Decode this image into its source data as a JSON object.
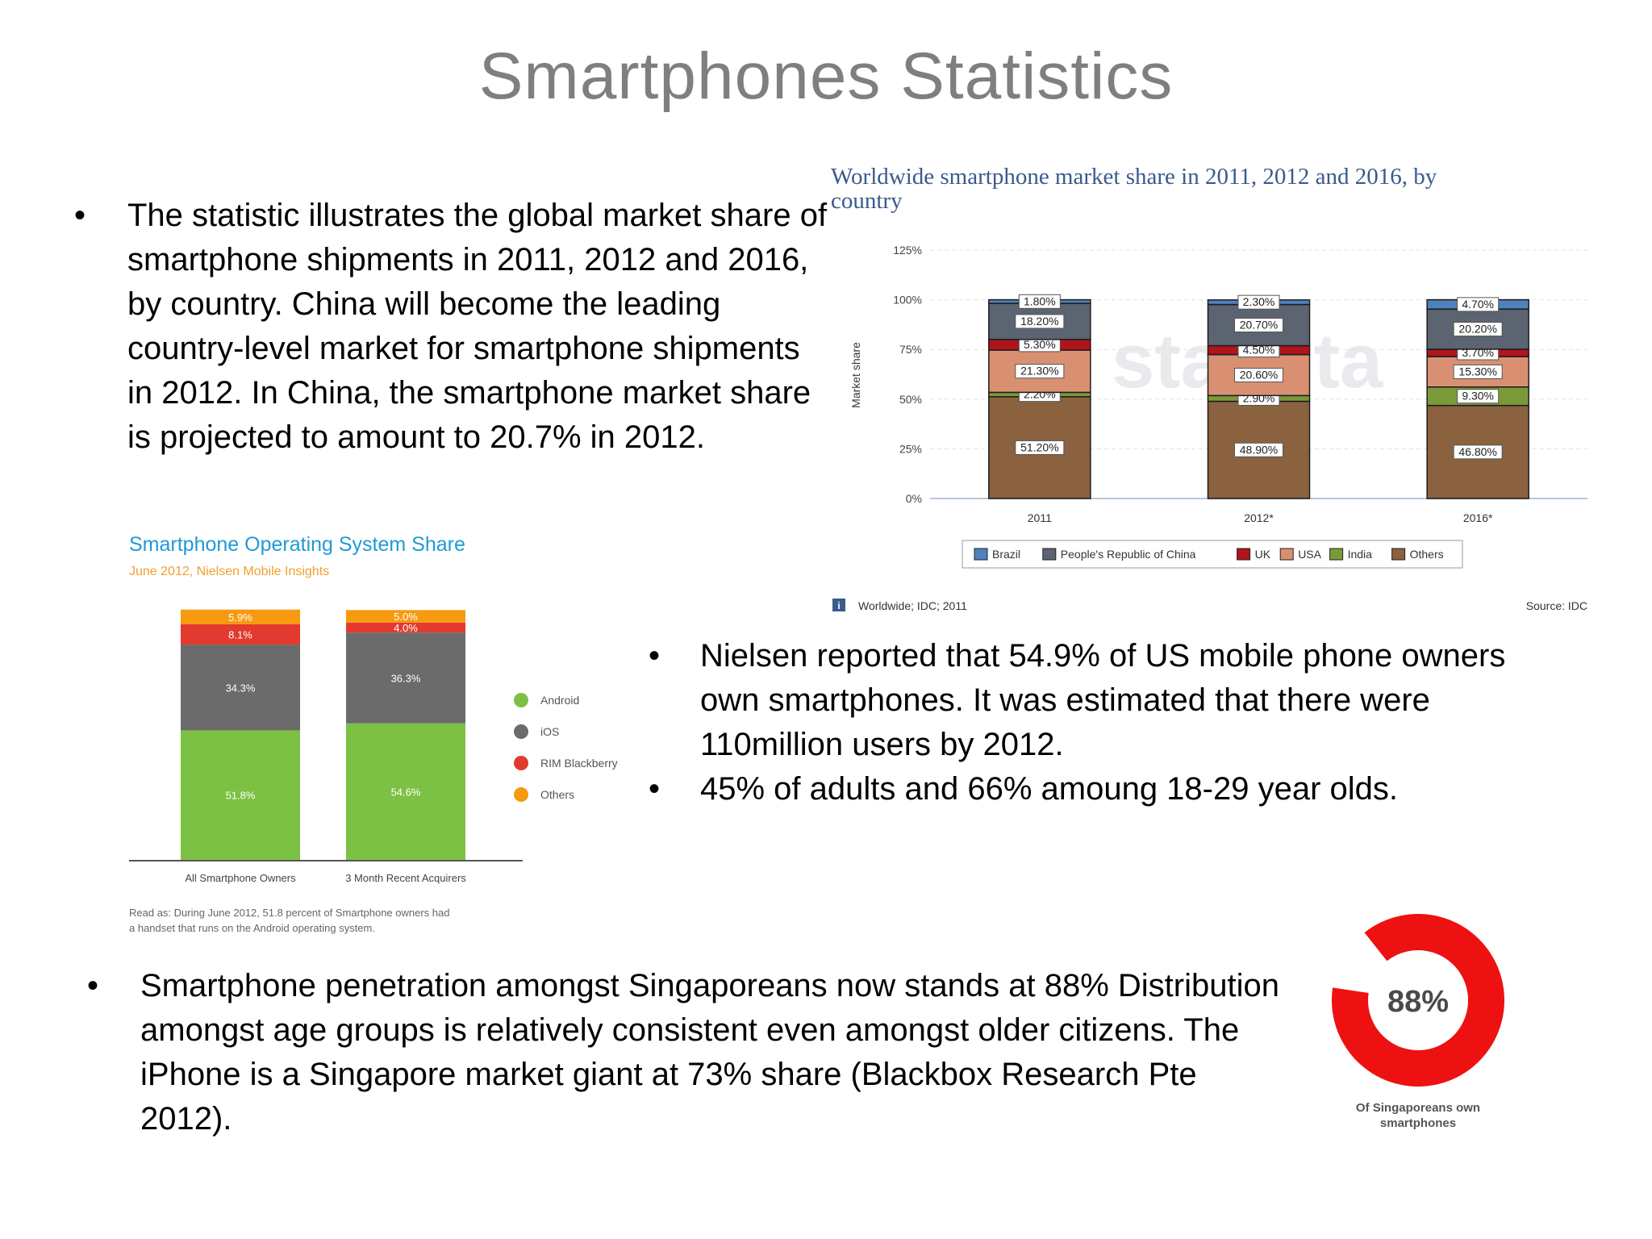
{
  "slide": {
    "title": "Smartphones Statistics"
  },
  "bullets": {
    "first": "The statistic illustrates the global market share of smartphone shipments in 2011, 2012 and 2016, by country. China will become the leading country-level market for smartphone shipments in 2012. In China, the smartphone market share is projected to amount to 20.7% in 2012.",
    "nielsen_1": "Nielsen reported that 54.9% of US mobile phone owners own smartphones. It was estimated that there were 110million users by 2012.",
    "nielsen_2": "45% of adults and 66% amoung 18-29 year olds.",
    "singapore": "Smartphone penetration amongst Singaporeans now stands at 88% Distribution amongst age groups is relatively consistent even amongst older citizens. The iPhone is a Singapore market giant at 73% share (Blackbox Research Pte 2012)."
  },
  "colors": {
    "title_gray": "#7f7f7f",
    "idc_title_blue": "#3a5a8c",
    "nielsen_title_blue": "#1f9ad6",
    "nielsen_subtitle_orange": "#f0a030",
    "brazil": "#4f81bd",
    "china": "#5b6470",
    "uk": "#b0141c",
    "usa": "#d99072",
    "india": "#7a9a3a",
    "others_brown": "#8a6240",
    "android": "#7cc144",
    "ios": "#6b6b6b",
    "rim": "#e23a2e",
    "nielsen_others": "#f79a10",
    "donut_red": "#ee1111"
  },
  "chart_data": [
    {
      "id": "idc",
      "type": "bar",
      "stacked": true,
      "title": "Worldwide smartphone market share in 2011, 2012 and 2016, by country",
      "ylabel": "Market share",
      "xlabel": "",
      "ylim": [
        0,
        125
      ],
      "yticks": [
        "0%",
        "25%",
        "50%",
        "75%",
        "100%",
        "125%"
      ],
      "grid": true,
      "legend_position": "bottom",
      "categories": [
        "2011",
        "2012*",
        "2016*"
      ],
      "series": [
        {
          "name": "Others",
          "values": [
            51.2,
            48.9,
            46.8
          ],
          "labels": [
            "51.20%",
            "48.90%",
            "46.80%"
          ],
          "color_key": "others_brown"
        },
        {
          "name": "India",
          "values": [
            2.2,
            2.9,
            9.3
          ],
          "labels": [
            "2.20%",
            "2.90%",
            "9.30%"
          ],
          "color_key": "india"
        },
        {
          "name": "USA",
          "values": [
            21.3,
            20.6,
            15.3
          ],
          "labels": [
            "21.30%",
            "20.60%",
            "15.30%"
          ],
          "color_key": "usa"
        },
        {
          "name": "UK",
          "values": [
            5.3,
            4.5,
            3.7
          ],
          "labels": [
            "5.30%",
            "4.50%",
            "3.70%"
          ],
          "color_key": "uk"
        },
        {
          "name": "People's Republic of China",
          "values": [
            18.2,
            20.7,
            20.2
          ],
          "labels": [
            "18.20%",
            "20.70%",
            "20.20%"
          ],
          "color_key": "china"
        },
        {
          "name": "Brazil",
          "values": [
            1.8,
            2.3,
            4.7
          ],
          "labels": [
            "1.80%",
            "2.30%",
            "4.70%"
          ],
          "color_key": "brazil"
        }
      ],
      "legend_order": [
        "Brazil",
        "People's Republic of China",
        "UK",
        "USA",
        "India",
        "Others"
      ],
      "footer_left": "Worldwide; IDC; 2011",
      "footer_info_icon": "i",
      "footer_right": "Source: IDC",
      "watermark": "statista"
    },
    {
      "id": "nielsen",
      "type": "bar",
      "stacked": true,
      "title": "Smartphone Operating System Share",
      "subtitle": "June 2012, Nielsen Mobile Insights",
      "legend_position": "right",
      "categories": [
        "All Smartphone Owners",
        "3 Month Recent Acquirers"
      ],
      "series": [
        {
          "name": "Android",
          "values": [
            51.8,
            54.6
          ],
          "labels": [
            "51.8%",
            "54.6%"
          ],
          "color_key": "android"
        },
        {
          "name": "iOS",
          "values": [
            34.3,
            36.3
          ],
          "labels": [
            "34.3%",
            "36.3%"
          ],
          "color_key": "ios"
        },
        {
          "name": "RIM Blackberry",
          "values": [
            8.1,
            4.0
          ],
          "labels": [
            "8.1%",
            "4.0%"
          ],
          "color_key": "rim"
        },
        {
          "name": "Others",
          "values": [
            5.9,
            5.0
          ],
          "labels": [
            "5.9%",
            "5.0%"
          ],
          "color_key": "nielsen_others"
        }
      ],
      "note": "Read as: During June 2012, 51.8 percent of Smartphone owners had a handset that runs on the Android operating system."
    },
    {
      "id": "singapore",
      "type": "pie",
      "value": 88,
      "center_label": "88%",
      "caption": "Of Singaporeans own smartphones"
    }
  ]
}
